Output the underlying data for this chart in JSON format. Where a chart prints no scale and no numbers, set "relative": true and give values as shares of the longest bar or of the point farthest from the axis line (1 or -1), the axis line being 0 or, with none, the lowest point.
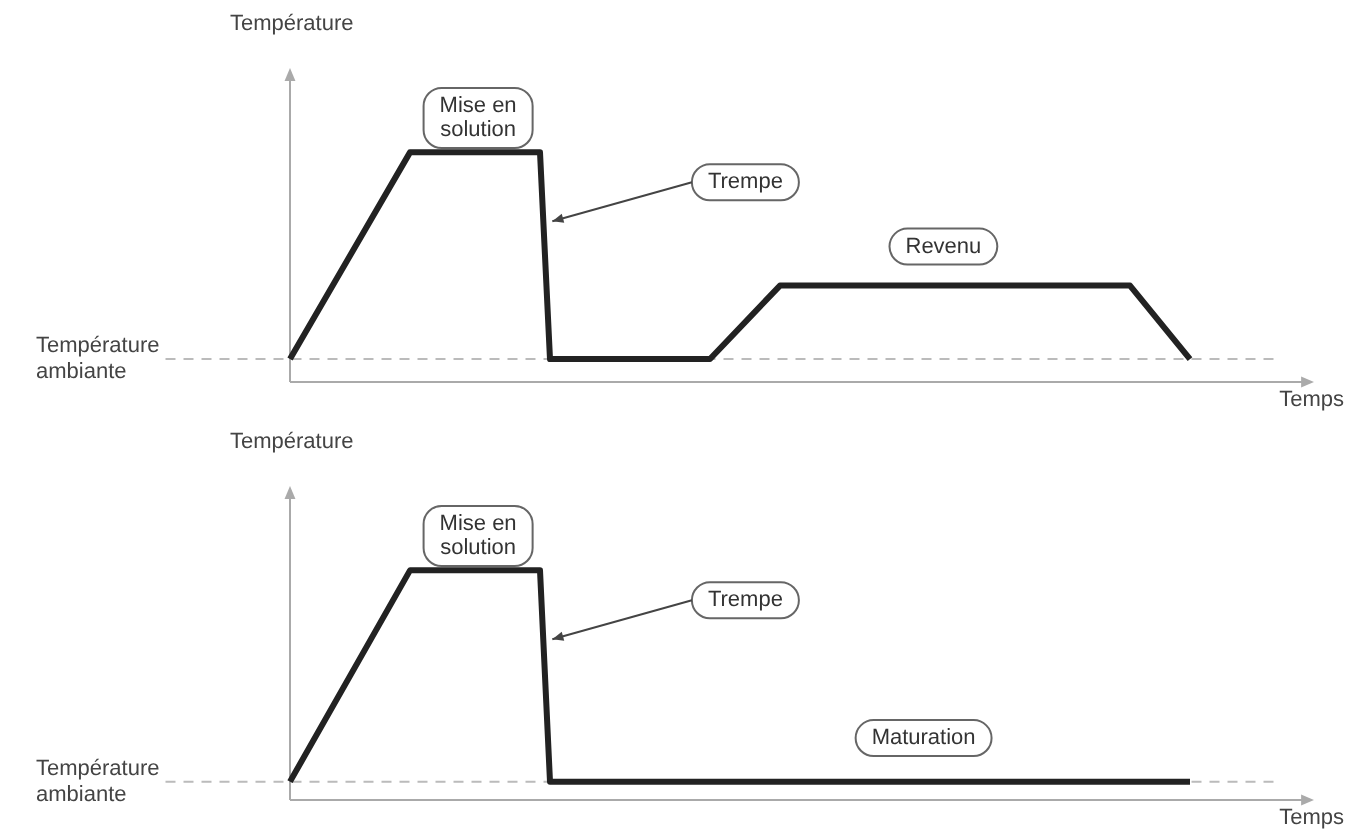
{
  "chart_data": [
    {
      "type": "line",
      "ylabel": "Température",
      "xlabel": "Temps",
      "relative": true,
      "marker": "none",
      "line_style": "solid",
      "categories": [
        null,
        null,
        null,
        null,
        null,
        null,
        null,
        null,
        null,
        null,
        null,
        null,
        null,
        null,
        null,
        null,
        null,
        null,
        null,
        null,
        null,
        null,
        null,
        null,
        null,
        null,
        null,
        null,
        null,
        null,
        null,
        null,
        null,
        null,
        null,
        null,
        null,
        null,
        null,
        null,
        null,
        null,
        null,
        null,
        null,
        null,
        null,
        null,
        null,
        null,
        null,
        null,
        null,
        null,
        null,
        null,
        null,
        null,
        null,
        null,
        null,
        null,
        null,
        null,
        null,
        null,
        null,
        null,
        null,
        null,
        null,
        null,
        null,
        null,
        null,
        null,
        null,
        null,
        null,
        null,
        null,
        null,
        null,
        null,
        null,
        null,
        null,
        null,
        null,
        null,
        null,
        null,
        null,
        null,
        null,
        null,
        null,
        null,
        null,
        null
      ],
      "series": [
        {
          "color": "#222222",
          "values": [
            0.1,
            null,
            null,
            null,
            null,
            null,
            null,
            null,
            null,
            null,
            null,
            null,
            1,
            null,
            null,
            null,
            null,
            null,
            null,
            null,
            null,
            null,
            null,
            null,
            null,
            1,
            0.1,
            null,
            null,
            null,
            null,
            null,
            null,
            null,
            null,
            null,
            null,
            null,
            null,
            null,
            null,
            null,
            0.1,
            null,
            null,
            null,
            null,
            null,
            null,
            0.42,
            null,
            null,
            null,
            null,
            null,
            null,
            null,
            null,
            null,
            null,
            null,
            null,
            null,
            null,
            null,
            null,
            null,
            null,
            null,
            null,
            null,
            null,
            null,
            null,
            null,
            null,
            null,
            null,
            null,
            null,
            null,
            null,
            null,
            null,
            0.42,
            null,
            null,
            null,
            null,
            null,
            0.1,
            null,
            null,
            null,
            null,
            null,
            null,
            null,
            null,
            null
          ]
        }
      ],
      "ref_lines": [
        {
          "axis": "y",
          "value": 0.1,
          "label": "Température ambiante",
          "color": "#bbbbbb",
          "line_style": "dashed"
        }
      ],
      "annotations": [
        "Mise en solution",
        "Trempe",
        "Revenu"
      ]
    },
    {
      "type": "line",
      "ylabel": "Température",
      "xlabel": "Temps",
      "relative": true,
      "marker": "none",
      "line_style": "solid",
      "categories": [
        null,
        null,
        null,
        null,
        null,
        null,
        null,
        null,
        null,
        null,
        null,
        null,
        null,
        null,
        null,
        null,
        null,
        null,
        null,
        null,
        null,
        null,
        null,
        null,
        null,
        null,
        null,
        null,
        null,
        null,
        null,
        null,
        null,
        null,
        null,
        null,
        null,
        null,
        null,
        null,
        null,
        null,
        null,
        null,
        null,
        null,
        null,
        null,
        null,
        null,
        null,
        null,
        null,
        null,
        null,
        null,
        null,
        null,
        null,
        null,
        null,
        null,
        null,
        null,
        null,
        null,
        null,
        null,
        null,
        null,
        null,
        null,
        null,
        null,
        null,
        null,
        null,
        null,
        null,
        null,
        null,
        null,
        null,
        null,
        null,
        null,
        null,
        null,
        null,
        null,
        null,
        null,
        null,
        null,
        null,
        null,
        null,
        null,
        null,
        null
      ],
      "series": [
        {
          "color": "#222222",
          "values": [
            0.08,
            null,
            null,
            null,
            null,
            null,
            null,
            null,
            null,
            null,
            null,
            null,
            1,
            null,
            null,
            null,
            null,
            null,
            null,
            null,
            null,
            null,
            null,
            null,
            null,
            1,
            0.08,
            null,
            null,
            null,
            null,
            null,
            null,
            null,
            null,
            null,
            null,
            null,
            null,
            null,
            null,
            null,
            null,
            null,
            null,
            null,
            null,
            null,
            null,
            null,
            null,
            null,
            null,
            null,
            null,
            null,
            null,
            null,
            null,
            null,
            null,
            null,
            null,
            null,
            null,
            null,
            null,
            null,
            null,
            null,
            null,
            null,
            null,
            null,
            null,
            null,
            null,
            null,
            null,
            null,
            null,
            null,
            null,
            null,
            null,
            null,
            null,
            null,
            null,
            null,
            0.08,
            null,
            null,
            null,
            null,
            null,
            null,
            null,
            null,
            null
          ]
        }
      ],
      "ref_lines": [
        {
          "axis": "y",
          "value": 0.08,
          "label": "Température ambiante",
          "color": "#bbbbbb",
          "line_style": "dashed"
        }
      ],
      "annotations": [
        "Mise en solution",
        "Trempe",
        "Maturation"
      ]
    }
  ]
}
